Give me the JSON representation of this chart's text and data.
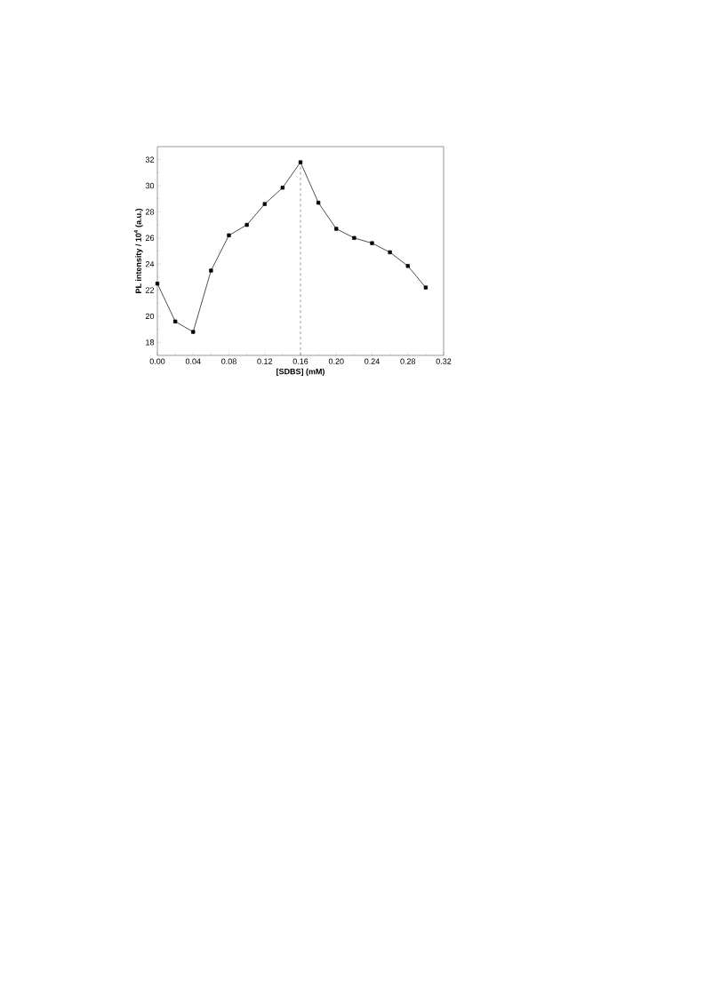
{
  "chart_data": {
    "type": "line",
    "xlabel": "[SDBS] (mM)",
    "ylabel": "PL intensity / 10$^{4}$ (a.u.)",
    "x": [
      0.0,
      0.02,
      0.04,
      0.06,
      0.08,
      0.1,
      0.12,
      0.14,
      0.16,
      0.18,
      0.2,
      0.22,
      0.24,
      0.26,
      0.28,
      0.3
    ],
    "series": [
      {
        "color": "#000000",
        "values": [
          22.5,
          19.6,
          18.8,
          23.5,
          26.2,
          27.0,
          28.6,
          29.85,
          31.8,
          28.7,
          26.7,
          26.0,
          25.6,
          24.9,
          23.85,
          22.2
        ]
      }
    ],
    "xlim": [
      0,
      0.32
    ],
    "ylim": [
      17,
      33
    ],
    "xticks": [
      {
        "value": 0,
        "label": "0.00"
      },
      0.04,
      0.08,
      0.12,
      0.16,
      {
        "value": 0.2,
        "label": "0.20"
      },
      0.24,
      0.28,
      0.32
    ],
    "yticks": [
      18,
      20,
      22,
      24,
      26,
      28,
      30,
      32
    ],
    "marker": "square",
    "line_style": "solid",
    "grid": false,
    "ref_lines": [
      {
        "axis": "x",
        "value": 0.16,
        "line_style": "dashed"
      }
    ]
  }
}
